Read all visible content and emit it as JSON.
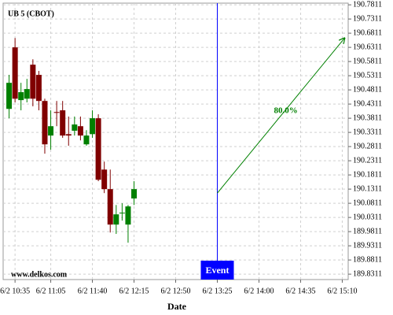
{
  "chart_data": {
    "type": "candlestick",
    "title": "UB 5 (CBOT)",
    "watermark": "www.delkos.com",
    "x_label": "Date",
    "x": [
      630,
      635,
      640,
      645,
      650,
      655,
      660,
      665,
      670,
      675,
      680,
      685,
      690,
      695,
      700,
      705,
      710,
      715,
      720,
      725,
      730,
      735
    ],
    "open": [
      190.414,
      190.631,
      190.445,
      190.45,
      190.57,
      190.534,
      190.442,
      190.32,
      190.403,
      190.409,
      190.325,
      190.337,
      190.353,
      190.289,
      190.325,
      190.381,
      190.2,
      190.131,
      190.006,
      190.048,
      190.006,
      190.098
    ],
    "high": [
      190.534,
      190.664,
      190.506,
      190.52,
      190.589,
      190.548,
      190.45,
      190.409,
      190.442,
      190.442,
      190.387,
      190.387,
      190.387,
      190.339,
      190.409,
      190.395,
      190.228,
      190.2,
      190.075,
      190.081,
      190.075,
      190.159
    ],
    "low": [
      190.381,
      190.437,
      190.409,
      190.437,
      190.423,
      190.409,
      190.256,
      190.27,
      190.353,
      190.312,
      190.284,
      190.32,
      190.303,
      190.284,
      190.312,
      190.159,
      190.117,
      189.978,
      189.973,
      190.02,
      189.942,
      190.075
    ],
    "close": [
      190.506,
      190.45,
      190.473,
      190.484,
      190.45,
      190.442,
      190.289,
      190.353,
      190.4,
      190.32,
      190.32,
      190.359,
      190.32,
      190.32,
      190.381,
      190.164,
      190.131,
      190.006,
      190.042,
      190.048,
      190.07,
      190.131
    ],
    "up_color": "#008000",
    "down_color": "#800000",
    "xlim": [
      625,
      915
    ],
    "xticks": [
      {
        "value": 635,
        "label": "6/2 10:35"
      },
      {
        "value": 665,
        "label": "6/2 11:05"
      },
      {
        "value": 700,
        "label": "6/2 11:40"
      },
      {
        "value": 735,
        "label": "6/2 12:15"
      },
      {
        "value": 770,
        "label": "6/2 12:50"
      },
      {
        "value": 805,
        "label": "6/2 13:25"
      },
      {
        "value": 840,
        "label": "6/2 14:00"
      },
      {
        "value": 875,
        "label": "6/2 14:35"
      },
      {
        "value": 910,
        "label": "6/2 15:10"
      }
    ],
    "ylim": [
      189.812,
      190.787
    ],
    "yticks": [
      189.8311,
      189.8811,
      189.9311,
      189.9811,
      190.0311,
      190.0811,
      190.1311,
      190.1811,
      190.2311,
      190.2811,
      190.3311,
      190.3811,
      190.4311,
      190.4811,
      190.5311,
      190.5811,
      190.6311,
      190.6811,
      190.7311,
      190.7811
    ],
    "grid": true,
    "event": {
      "x": 805,
      "label": "Event",
      "color": "#0000ff"
    },
    "arrow": {
      "x": [
        805,
        912
      ],
      "y": [
        190.117,
        190.664
      ],
      "label": "80.0%",
      "color": "#008000"
    }
  }
}
